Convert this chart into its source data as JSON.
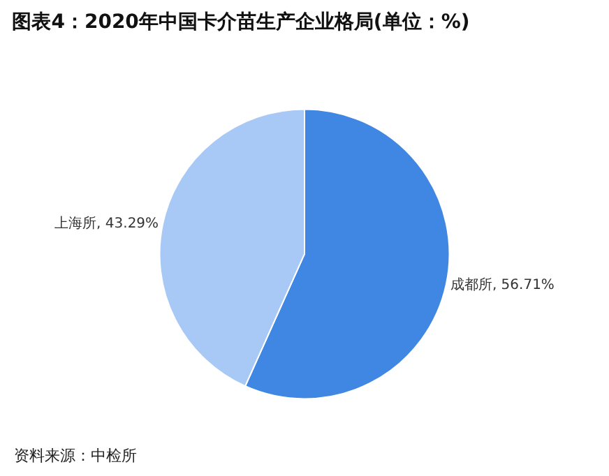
{
  "chart_data": {
    "type": "pie",
    "title": "图表4：2020年中国卡介苗生产企业格局(单位：%)",
    "categories": [
      "成都所",
      "上海所"
    ],
    "values": [
      56.71,
      43.29
    ],
    "colors": [
      "#3f87e3",
      "#a8c9f6"
    ],
    "value_labels": [
      "56.71%",
      "43.29%"
    ],
    "annotations": [
      "资料来源：中检所"
    ],
    "legend": false
  }
}
